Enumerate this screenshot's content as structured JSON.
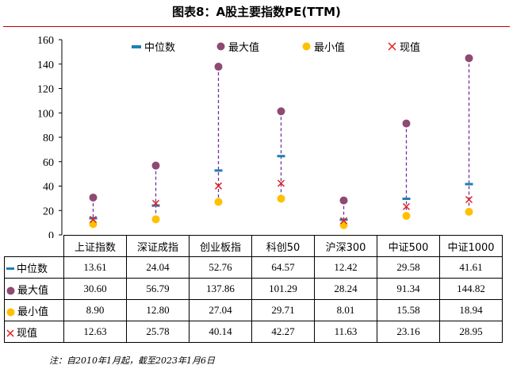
{
  "title": "图表8：A股主要指数PE(TTM)",
  "note": "注：自2010年1月起，截至2023年1月6日",
  "colors": {
    "median": "#1f7fb4",
    "max": "#8e4a72",
    "min": "#ffc000",
    "current": "#e02020",
    "range_line": "#7030a0",
    "title_rule": "#c00000"
  },
  "chart_data": {
    "type": "range-dot",
    "title": "图表8：A股主要指数PE(TTM)",
    "categories": [
      "上证指数",
      "深证成指",
      "创业板指",
      "科创50",
      "沪深300",
      "中证500",
      "中证1000"
    ],
    "ylim": [
      0,
      160
    ],
    "yticks": [
      "0",
      "20",
      "40",
      "60",
      "80",
      "100",
      "120",
      "140",
      "160"
    ],
    "legend_position": "top",
    "series": [
      {
        "key": "median",
        "name": "中位数",
        "values": [
          13.61,
          24.04,
          52.76,
          64.57,
          12.42,
          29.58,
          41.61
        ],
        "labels": [
          "13.61",
          "24.04",
          "52.76",
          "64.57",
          "12.42",
          "29.58",
          "41.61"
        ]
      },
      {
        "key": "max",
        "name": "最大值",
        "values": [
          30.6,
          56.79,
          137.86,
          101.29,
          28.24,
          91.34,
          144.82
        ],
        "labels": [
          "30.60",
          "56.79",
          "137.86",
          "101.29",
          "28.24",
          "91.34",
          "144.82"
        ]
      },
      {
        "key": "min",
        "name": "最小值",
        "values": [
          8.9,
          12.8,
          27.04,
          29.71,
          8.01,
          15.58,
          18.94
        ],
        "labels": [
          "8.90",
          "12.80",
          "27.04",
          "29.71",
          "8.01",
          "15.58",
          "18.94"
        ]
      },
      {
        "key": "current",
        "name": "现值",
        "values": [
          12.63,
          25.78,
          40.14,
          42.27,
          11.63,
          23.16,
          28.95
        ],
        "labels": [
          "12.63",
          "25.78",
          "40.14",
          "42.27",
          "11.63",
          "23.16",
          "28.95"
        ]
      }
    ]
  }
}
